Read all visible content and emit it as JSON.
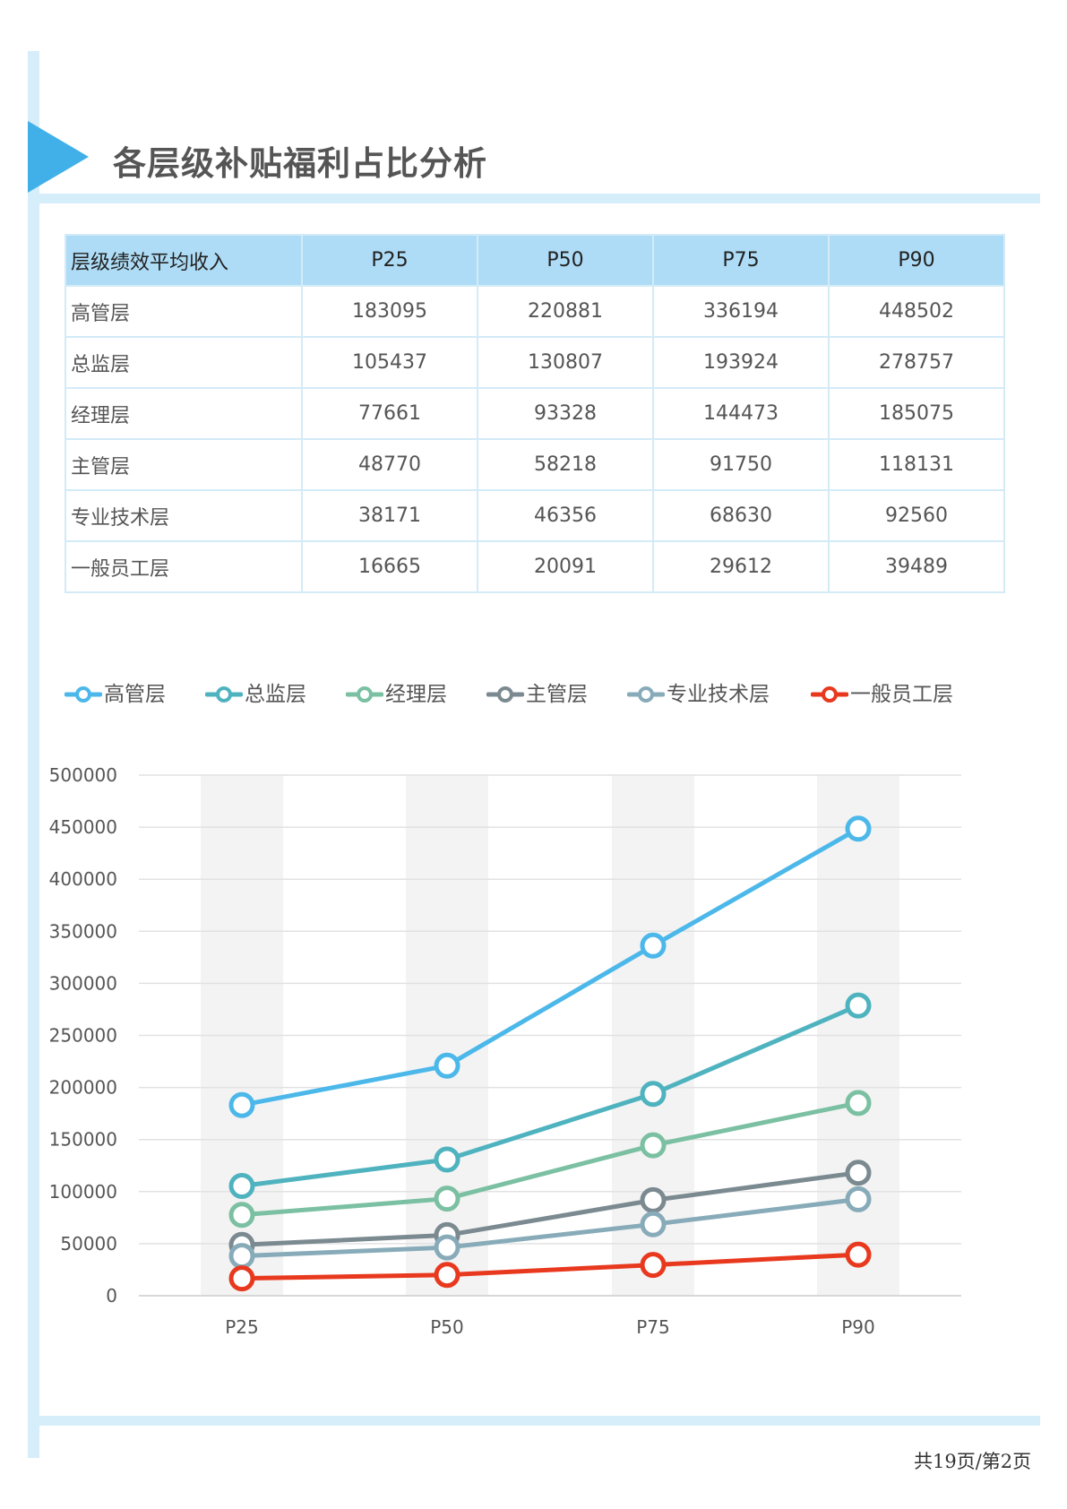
{
  "page": {
    "title": "各层级补贴福利占比分析",
    "footer": "共19页/第2页"
  },
  "table": {
    "header": [
      "层级绩效平均收入",
      "P25",
      "P50",
      "P75",
      "P90"
    ],
    "rows": [
      [
        "高管层",
        "183095",
        "220881",
        "336194",
        "448502"
      ],
      [
        "总监层",
        "105437",
        "130807",
        "193924",
        "278757"
      ],
      [
        "经理层",
        "77661",
        "93328",
        "144473",
        "185075"
      ],
      [
        "主管层",
        "48770",
        "58218",
        "91750",
        "118131"
      ],
      [
        "专业技术层",
        "38171",
        "46356",
        "68630",
        "92560"
      ],
      [
        "一般员工层",
        "16665",
        "20091",
        "29612",
        "39489"
      ]
    ]
  },
  "chart_data": {
    "type": "line",
    "categories": [
      "P25",
      "P50",
      "P75",
      "P90"
    ],
    "ylim": [
      0,
      500000
    ],
    "yticks": [
      0,
      50000,
      100000,
      150000,
      200000,
      250000,
      300000,
      350000,
      400000,
      450000,
      500000
    ],
    "grid": true,
    "legend": "top",
    "series": [
      {
        "name": "高管层",
        "color": "#4cb8ea",
        "values": [
          183095,
          220881,
          336194,
          448502
        ]
      },
      {
        "name": "总监层",
        "color": "#4fb3bf",
        "values": [
          105437,
          130807,
          193924,
          278757
        ]
      },
      {
        "name": "经理层",
        "color": "#7bc0a2",
        "values": [
          77661,
          93328,
          144473,
          185075
        ]
      },
      {
        "name": "主管层",
        "color": "#7b8a90",
        "values": [
          48770,
          58218,
          91750,
          118131
        ]
      },
      {
        "name": "专业技术层",
        "color": "#88abb9",
        "values": [
          38171,
          46356,
          68630,
          92560
        ]
      },
      {
        "name": "一般员工层",
        "color": "#e8391f",
        "values": [
          16665,
          20091,
          29612,
          39489
        ]
      }
    ]
  }
}
